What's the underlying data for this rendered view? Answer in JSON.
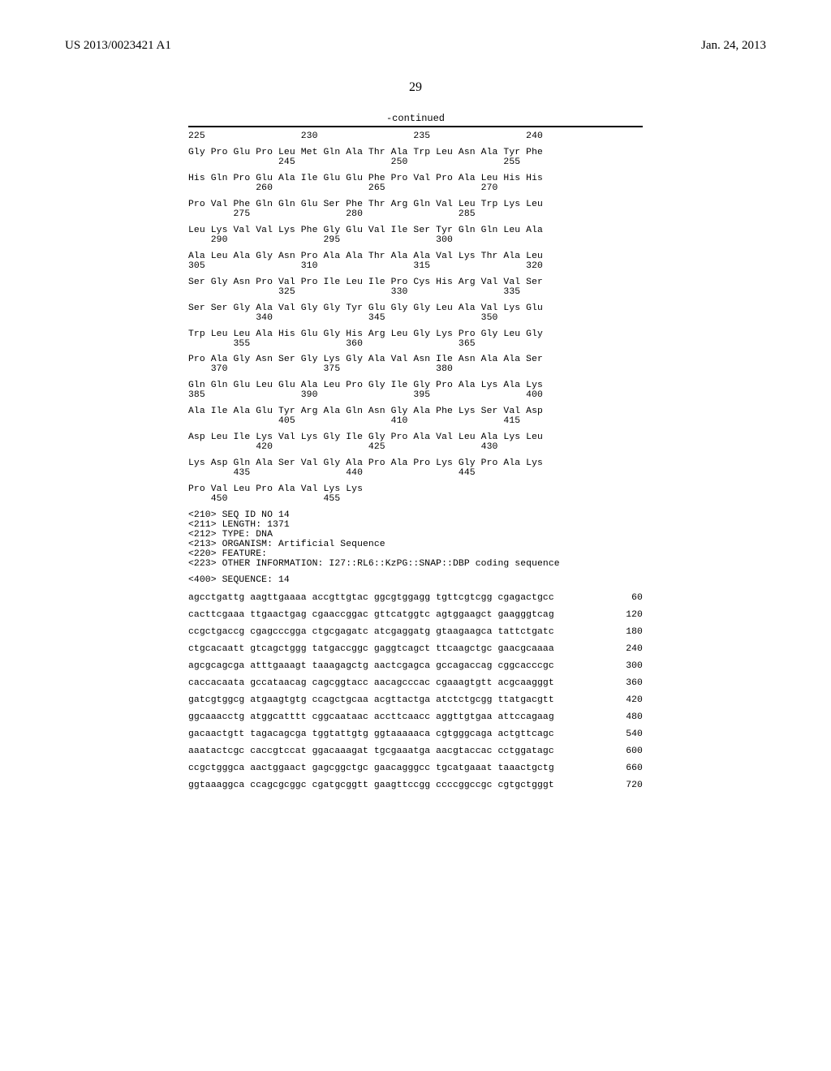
{
  "header": {
    "pubnum": "US 2013/0023421 A1",
    "pubdate": "Jan. 24, 2013",
    "pagenum": "29",
    "continued": "-continued"
  },
  "protein": {
    "first_num_line": "225                 230                 235                 240",
    "groups": [
      {
        "aa": "Gly Pro Glu Pro Leu Met Gln Ala Thr Ala Trp Leu Asn Ala Tyr Phe",
        "num": "                245                 250                 255"
      },
      {
        "aa": "His Gln Pro Glu Ala Ile Glu Glu Phe Pro Val Pro Ala Leu His His",
        "num": "            260                 265                 270"
      },
      {
        "aa": "Pro Val Phe Gln Gln Glu Ser Phe Thr Arg Gln Val Leu Trp Lys Leu",
        "num": "        275                 280                 285"
      },
      {
        "aa": "Leu Lys Val Val Lys Phe Gly Glu Val Ile Ser Tyr Gln Gln Leu Ala",
        "num": "    290                 295                 300"
      },
      {
        "aa": "Ala Leu Ala Gly Asn Pro Ala Ala Thr Ala Ala Val Lys Thr Ala Leu",
        "num": "305                 310                 315                 320"
      },
      {
        "aa": "Ser Gly Asn Pro Val Pro Ile Leu Ile Pro Cys His Arg Val Val Ser",
        "num": "                325                 330                 335"
      },
      {
        "aa": "Ser Ser Gly Ala Val Gly Gly Tyr Glu Gly Gly Leu Ala Val Lys Glu",
        "num": "            340                 345                 350"
      },
      {
        "aa": "Trp Leu Leu Ala His Glu Gly His Arg Leu Gly Lys Pro Gly Leu Gly",
        "num": "        355                 360                 365"
      },
      {
        "aa": "Pro Ala Gly Asn Ser Gly Lys Gly Ala Val Asn Ile Asn Ala Ala Ser",
        "num": "    370                 375                 380"
      },
      {
        "aa": "Gln Gln Glu Leu Glu Ala Leu Pro Gly Ile Gly Pro Ala Lys Ala Lys",
        "num": "385                 390                 395                 400"
      },
      {
        "aa": "Ala Ile Ala Glu Tyr Arg Ala Gln Asn Gly Ala Phe Lys Ser Val Asp",
        "num": "                405                 410                 415"
      },
      {
        "aa": "Asp Leu Ile Lys Val Lys Gly Ile Gly Pro Ala Val Leu Ala Lys Leu",
        "num": "            420                 425                 430"
      },
      {
        "aa": "Lys Asp Gln Ala Ser Val Gly Ala Pro Ala Pro Lys Gly Pro Ala Lys",
        "num": "        435                 440                 445"
      },
      {
        "aa": "Pro Val Leu Pro Ala Val Lys Lys",
        "num": "    450                 455"
      }
    ]
  },
  "meta": [
    "<210> SEQ ID NO 14",
    "<211> LENGTH: 1371",
    "<212> TYPE: DNA",
    "<213> ORGANISM: Artificial Sequence",
    "<220> FEATURE:",
    "<223> OTHER INFORMATION: I27::RL6::KzPG::SNAP::DBP coding sequence"
  ],
  "seqline": "<400> SEQUENCE: 14",
  "dna": [
    {
      "seq": "agcctgattg aagttgaaaa accgttgtac ggcgtggagg tgttcgtcgg cgagactgcc",
      "n": "60"
    },
    {
      "seq": "cacttcgaaa ttgaactgag cgaaccggac gttcatggtc agtggaagct gaagggtcag",
      "n": "120"
    },
    {
      "seq": "ccgctgaccg cgagcccgga ctgcgagatc atcgaggatg gtaagaagca tattctgatc",
      "n": "180"
    },
    {
      "seq": "ctgcacaatt gtcagctggg tatgaccggc gaggtcagct ttcaagctgc gaacgcaaaa",
      "n": "240"
    },
    {
      "seq": "agcgcagcga atttgaaagt taaagagctg aactcgagca gccagaccag cggcacccgc",
      "n": "300"
    },
    {
      "seq": "caccacaata gccataacag cagcggtacc aacagcccac cgaaagtgtt acgcaagggt",
      "n": "360"
    },
    {
      "seq": "gatcgtggcg atgaagtgtg ccagctgcaa acgttactga atctctgcgg ttatgacgtt",
      "n": "420"
    },
    {
      "seq": "ggcaaacctg atggcatttt cggcaataac accttcaacc aggttgtgaa attccagaag",
      "n": "480"
    },
    {
      "seq": "gacaactgtt tagacagcga tggtattgtg ggtaaaaaca cgtgggcaga actgttcagc",
      "n": "540"
    },
    {
      "seq": "aaatactcgc caccgtccat ggacaaagat tgcgaaatga aacgtaccac cctggatagc",
      "n": "600"
    },
    {
      "seq": "ccgctgggca aactggaact gagcggctgc gaacagggcc tgcatgaaat taaactgctg",
      "n": "660"
    },
    {
      "seq": "ggtaaaggca ccagcgcggc cgatgcggtt gaagttccgg ccccggccgc cgtgctgggt",
      "n": "720"
    }
  ]
}
